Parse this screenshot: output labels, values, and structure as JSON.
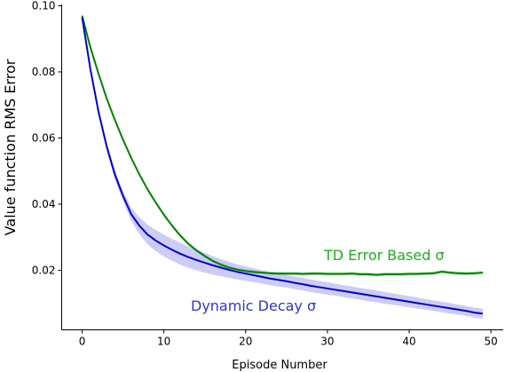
{
  "chart_data": {
    "type": "line",
    "xlabel": "Episode Number",
    "ylabel": "Value function RMS Error",
    "xlim": [
      -2.5,
      51.5
    ],
    "ylim": [
      0.002,
      0.1004
    ],
    "xticks": [
      0,
      10,
      20,
      30,
      40,
      50
    ],
    "xtick_labels": [
      "0",
      "10",
      "20",
      "30",
      "40",
      "50"
    ],
    "yticks": [
      0.02,
      0.04,
      0.06,
      0.08,
      0.1
    ],
    "ytick_labels": [
      "0.02",
      "0.04",
      "0.06",
      "0.08",
      "0.10"
    ],
    "grid": false,
    "x": [
      0,
      1,
      2,
      3,
      4,
      5,
      6,
      7,
      8,
      9,
      10,
      11,
      12,
      13,
      14,
      15,
      16,
      17,
      18,
      19,
      20,
      21,
      22,
      23,
      24,
      25,
      26,
      27,
      28,
      29,
      30,
      31,
      32,
      33,
      34,
      35,
      36,
      37,
      38,
      39,
      40,
      41,
      42,
      43,
      44,
      45,
      46,
      47,
      48,
      49
    ],
    "series": [
      {
        "name": "TD Error Based σ",
        "color": "#008000",
        "band_color": "#66cc66",
        "values": [
          0.097,
          0.0875,
          0.0795,
          0.072,
          0.0655,
          0.0595,
          0.054,
          0.049,
          0.0445,
          0.0405,
          0.0368,
          0.0335,
          0.0305,
          0.028,
          0.026,
          0.0243,
          0.0228,
          0.0217,
          0.0208,
          0.0202,
          0.0198,
          0.0195,
          0.0193,
          0.0191,
          0.019,
          0.019,
          0.019,
          0.0189,
          0.019,
          0.019,
          0.0189,
          0.0189,
          0.0189,
          0.019,
          0.0188,
          0.0188,
          0.0186,
          0.0188,
          0.0188,
          0.0188,
          0.0189,
          0.0189,
          0.019,
          0.0191,
          0.0196,
          0.0193,
          0.0191,
          0.019,
          0.0191,
          0.0193
        ],
        "band": [
          0.0005,
          0.0005,
          0.0005,
          0.0005,
          0.0005,
          0.0005,
          0.0005,
          0.0005,
          0.0005,
          0.0005,
          0.0005,
          0.0005,
          0.0005,
          0.0005,
          0.0005,
          0.0005,
          0.0005,
          0.0005,
          0.0005,
          0.0005,
          0.0005,
          0.0005,
          0.0005,
          0.0005,
          0.0005,
          0.0005,
          0.0005,
          0.0005,
          0.0005,
          0.0005,
          0.0005,
          0.0005,
          0.0005,
          0.0005,
          0.0005,
          0.0005,
          0.0005,
          0.0005,
          0.0005,
          0.0005,
          0.0005,
          0.0005,
          0.0005,
          0.0005,
          0.0005,
          0.0005,
          0.0005,
          0.0005,
          0.0005,
          0.0005
        ]
      },
      {
        "name": "Dynamic Decay σ",
        "color": "#0000cc",
        "band_color": "#8f8fee",
        "values": [
          0.0965,
          0.081,
          0.068,
          0.0575,
          0.049,
          0.0425,
          0.037,
          0.0335,
          0.0308,
          0.029,
          0.0275,
          0.0262,
          0.025,
          0.024,
          0.0231,
          0.0223,
          0.0215,
          0.0208,
          0.0201,
          0.0195,
          0.019,
          0.0185,
          0.018,
          0.0175,
          0.0171,
          0.0167,
          0.0162,
          0.0158,
          0.0153,
          0.0149,
          0.0145,
          0.0141,
          0.0137,
          0.0133,
          0.0129,
          0.0125,
          0.0121,
          0.0117,
          0.0113,
          0.0109,
          0.0105,
          0.0101,
          0.0097,
          0.0093,
          0.0089,
          0.0085,
          0.0081,
          0.0077,
          0.0072,
          0.0069
        ],
        "band": [
          0.0005,
          0.0008,
          0.001,
          0.0012,
          0.0014,
          0.0016,
          0.002,
          0.0025,
          0.003,
          0.0032,
          0.0033,
          0.0033,
          0.0033,
          0.0032,
          0.0031,
          0.003,
          0.0028,
          0.0026,
          0.0024,
          0.0023,
          0.0022,
          0.0021,
          0.002,
          0.002,
          0.002,
          0.0019,
          0.0019,
          0.0019,
          0.0019,
          0.0019,
          0.0019,
          0.0018,
          0.0018,
          0.0018,
          0.0018,
          0.0018,
          0.0018,
          0.0018,
          0.0017,
          0.0017,
          0.0017,
          0.0017,
          0.0016,
          0.0016,
          0.0016,
          0.0016,
          0.0015,
          0.0015,
          0.0015,
          0.0015
        ]
      }
    ]
  }
}
